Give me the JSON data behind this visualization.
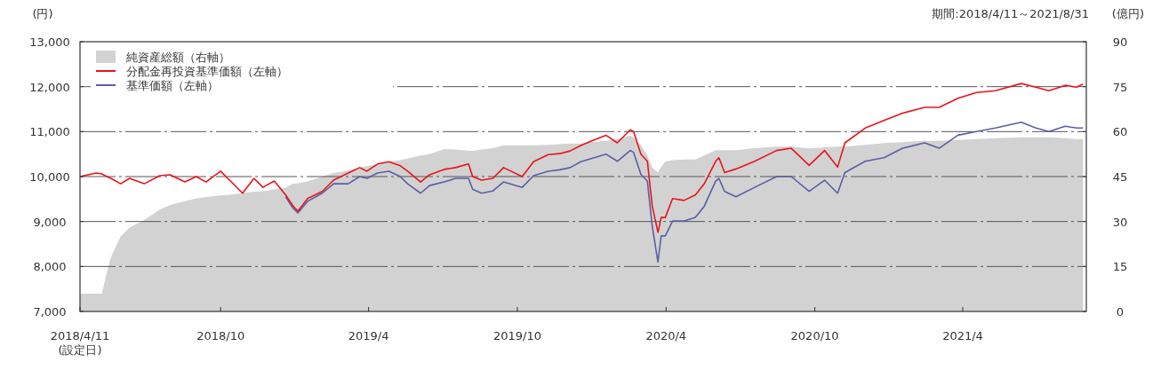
{
  "chart_data": {
    "type": "line",
    "ylabel": "(円)",
    "y2label": "(億円)",
    "annotations": [
      "期間:2018/4/11～2021/8/31"
    ],
    "x": [
      "2018-04-11",
      "2018-05-01",
      "2018-05-08",
      "2018-05-12",
      "2018-05-19",
      "2018-05-31",
      "2018-06-11",
      "2018-06-29",
      "2018-07-18",
      "2018-07-31",
      "2018-08-18",
      "2018-09-01",
      "2018-09-13",
      "2018-10-01",
      "2018-10-12",
      "2018-10-28",
      "2018-11-11",
      "2018-11-22",
      "2018-12-06",
      "2018-12-20",
      "2018-12-29",
      "2019-01-04",
      "2019-01-16",
      "2019-02-03",
      "2019-02-17",
      "2019-03-07",
      "2019-03-21",
      "2019-03-30",
      "2019-04-12",
      "2019-04-26",
      "2019-05-10",
      "2019-05-19",
      "2019-06-04",
      "2019-06-15",
      "2019-07-03",
      "2019-07-17",
      "2019-08-02",
      "2019-08-07",
      "2019-08-18",
      "2019-09-01",
      "2019-09-14",
      "2019-10-07",
      "2019-10-21",
      "2019-11-08",
      "2019-11-22",
      "2019-12-05",
      "2019-12-18",
      "2019-12-31",
      "2020-01-18",
      "2020-02-01",
      "2020-02-17",
      "2020-02-21",
      "2020-03-01",
      "2020-03-09",
      "2020-03-15",
      "2020-03-22",
      "2020-03-26",
      "2020-03-31",
      "2020-04-09",
      "2020-04-23",
      "2020-05-07",
      "2020-05-18",
      "2020-06-01",
      "2020-06-05",
      "2020-06-12",
      "2020-06-26",
      "2020-07-19",
      "2020-08-15",
      "2020-09-02",
      "2020-09-24",
      "2020-10-13",
      "2020-10-29",
      "2020-11-07",
      "2020-12-02",
      "2020-12-25",
      "2021-01-17",
      "2021-02-13",
      "2021-03-03",
      "2021-03-26",
      "2021-04-18",
      "2021-05-11",
      "2021-06-12",
      "2021-06-30",
      "2021-07-16",
      "2021-08-05",
      "2021-08-19",
      "2021-08-27"
    ],
    "series": [
      {
        "name": "純資産総額（右軸）",
        "type": "area",
        "axis": "y2",
        "color": "#d2d2d2",
        "values": [
          5.9,
          5.9,
          5.9,
          10.8,
          18.1,
          25,
          28,
          30.5,
          34,
          35.5,
          36.8,
          37.7,
          38.2,
          38.7,
          38.9,
          39.5,
          40,
          40.1,
          40.7,
          41.3,
          42.6,
          42.8,
          43.4,
          45,
          46.2,
          47,
          48,
          48.5,
          49.2,
          50,
          50.5,
          51,
          52,
          52.5,
          54.2,
          54,
          53.6,
          53.6,
          54,
          54.5,
          55.4,
          55.4,
          55.4,
          55.6,
          55.8,
          56,
          56,
          56.5,
          56.9,
          57.5,
          58.7,
          58,
          55.5,
          52,
          48,
          46.3,
          48.2,
          50,
          50.5,
          50.7,
          50.7,
          52,
          53.8,
          53.8,
          53.8,
          53.8,
          54.5,
          55,
          55,
          54.4,
          54.8,
          55,
          55,
          55.6,
          56.2,
          56.5,
          56.9,
          56.9,
          57.2,
          57.5,
          57.8,
          58.1,
          58.1,
          58.1,
          57.8,
          57.5,
          57.5
        ]
      },
      {
        "name": "分配金再投資基準価額（左軸）",
        "type": "line",
        "color": "#e8141b",
        "values": [
          10000,
          10080,
          10060,
          10020,
          9960,
          9840,
          9960,
          9840,
          10020,
          10040,
          9880,
          10000,
          9880,
          10120,
          9920,
          9630,
          9960,
          9760,
          9900,
          9590,
          9350,
          9230,
          9510,
          9670,
          9920,
          10080,
          10200,
          10120,
          10280,
          10330,
          10240,
          10120,
          9880,
          10040,
          10160,
          10200,
          10280,
          10000,
          9920,
          9960,
          10200,
          10000,
          10330,
          10490,
          10510,
          10570,
          10690,
          10790,
          10920,
          10750,
          11040,
          11000,
          10500,
          10340,
          9340,
          8760,
          9090,
          9090,
          9510,
          9470,
          9590,
          9840,
          10340,
          10420,
          10090,
          10170,
          10340,
          10580,
          10630,
          10250,
          10580,
          10210,
          10750,
          11080,
          11250,
          11410,
          11540,
          11540,
          11740,
          11870,
          11910,
          12070,
          11990,
          11910,
          12030,
          11990,
          12060
        ]
      },
      {
        "name": "基準価額（左軸）",
        "type": "line",
        "color": "#5b5ea6",
        "values": [
          null,
          null,
          null,
          null,
          null,
          null,
          null,
          null,
          null,
          null,
          null,
          null,
          null,
          null,
          null,
          null,
          null,
          null,
          null,
          9550,
          9300,
          9190,
          9450,
          9630,
          9840,
          9840,
          10000,
          9960,
          10080,
          10120,
          10000,
          9840,
          9630,
          9800,
          9880,
          9960,
          9960,
          9720,
          9630,
          9680,
          9880,
          9760,
          10020,
          10120,
          10150,
          10200,
          10330,
          10400,
          10500,
          10340,
          10580,
          10540,
          10050,
          9900,
          8890,
          8100,
          8680,
          8680,
          9010,
          9010,
          9090,
          9340,
          9900,
          9960,
          9670,
          9550,
          9760,
          10000,
          10000,
          9670,
          9920,
          9630,
          10090,
          10340,
          10420,
          10630,
          10750,
          10630,
          10920,
          11000,
          11080,
          11210,
          11080,
          11000,
          11120,
          11080,
          11080
        ]
      }
    ],
    "xlim": [
      "2018-04-11",
      "2021-08-31"
    ],
    "xticks": [
      {
        "value": "2018-04-11",
        "label": "2018/4/11\n(設定日)"
      },
      {
        "value": "2018-10-01",
        "label": "2018/10"
      },
      {
        "value": "2019-04-01",
        "label": "2019/4"
      },
      {
        "value": "2019-10-01",
        "label": "2019/10"
      },
      {
        "value": "2020-04-01",
        "label": "2020/4"
      },
      {
        "value": "2020-10-01",
        "label": "2020/10"
      },
      {
        "value": "2021-04-01",
        "label": "2021/4"
      }
    ],
    "ylim": [
      7000,
      13000
    ],
    "yticks": [
      {
        "value": 7000,
        "label": "7,000"
      },
      {
        "value": 8000,
        "label": "8,000"
      },
      {
        "value": 9000,
        "label": "9,000"
      },
      {
        "value": 10000,
        "label": "10,000"
      },
      {
        "value": 11000,
        "label": "11,000"
      },
      {
        "value": 12000,
        "label": "12,000"
      },
      {
        "value": 13000,
        "label": "13,000"
      }
    ],
    "y2lim": [
      0,
      90
    ],
    "y2ticks": [
      0,
      15,
      30,
      45,
      60,
      75,
      90
    ],
    "grid": "y",
    "legend": "top left"
  }
}
